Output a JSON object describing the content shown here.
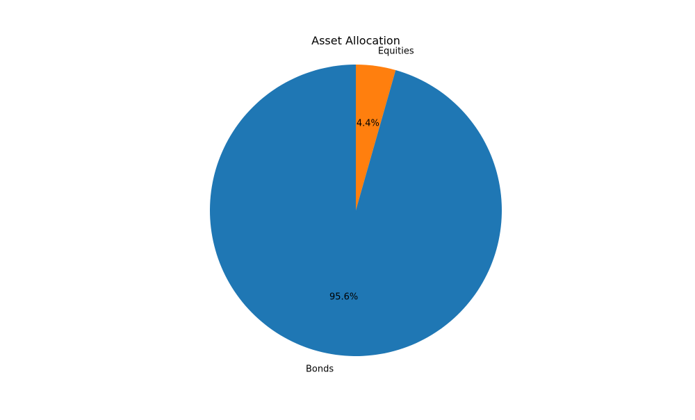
{
  "chart_data": {
    "type": "pie",
    "title": "Asset Allocation",
    "slices": [
      {
        "label": "Equities",
        "value": 4.4,
        "percent_label": "4.4%",
        "color": "#ff7f0e"
      },
      {
        "label": "Bonds",
        "value": 95.6,
        "percent_label": "95.6%",
        "color": "#1f77b4"
      }
    ],
    "start_angle_deg": 90,
    "direction": "clockwise",
    "legend": "none"
  }
}
